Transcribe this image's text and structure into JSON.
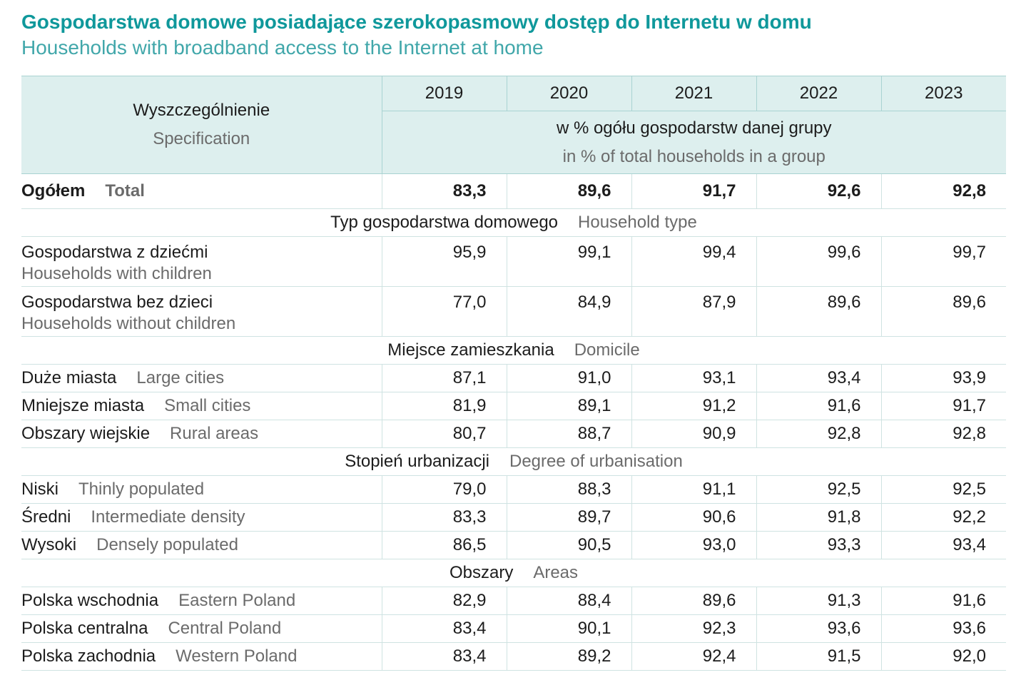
{
  "title": {
    "pl": "Gospodarstwa domowe posiadające szerokopasmowy dostęp do Internetu w domu",
    "en": "Households with broadband access to the Internet at home"
  },
  "colors": {
    "title": "#0f989b",
    "subtitle": "#41a7aa",
    "header_bg": "#ddefee",
    "english_text": "#6b6b6b"
  },
  "table": {
    "header": {
      "spec_pl": "Wyszczególnienie",
      "spec_en": "Specification",
      "years": [
        "2019",
        "2020",
        "2021",
        "2022",
        "2023"
      ],
      "unit_pl": "w % ogółu gospodarstw danej grupy",
      "unit_en": "in % of total households in a group"
    },
    "total": {
      "pl": "Ogółem",
      "en": "Total",
      "values": [
        "83,3",
        "89,6",
        "91,7",
        "92,6",
        "92,8"
      ]
    },
    "sections": [
      {
        "title_pl": "Typ gospodarstwa domowego",
        "title_en": "Household type",
        "rows": [
          {
            "pl": "Gospodarstwa z dziećmi",
            "en": "Households with children",
            "values": [
              "95,9",
              "99,1",
              "99,4",
              "99,6",
              "99,7"
            ]
          },
          {
            "pl": "Gospodarstwa bez dzieci",
            "en": "Households without children",
            "values": [
              "77,0",
              "84,9",
              "87,9",
              "89,6",
              "89,6"
            ]
          }
        ]
      },
      {
        "title_pl": "Miejsce zamieszkania",
        "title_en": "Domicile",
        "rows": [
          {
            "pl": "Duże miasta",
            "en": "Large cities",
            "values": [
              "87,1",
              "91,0",
              "93,1",
              "93,4",
              "93,9"
            ]
          },
          {
            "pl": "Mniejsze miasta",
            "en": "Small cities",
            "values": [
              "81,9",
              "89,1",
              "91,2",
              "91,6",
              "91,7"
            ]
          },
          {
            "pl": "Obszary wiejskie",
            "en": "Rural areas",
            "values": [
              "80,7",
              "88,7",
              "90,9",
              "92,8",
              "92,8"
            ]
          }
        ]
      },
      {
        "title_pl": "Stopień urbanizacji",
        "title_en": "Degree of urbanisation",
        "rows": [
          {
            "pl": "Niski",
            "en": "Thinly populated",
            "values": [
              "79,0",
              "88,3",
              "91,1",
              "92,5",
              "92,5"
            ]
          },
          {
            "pl": "Średni",
            "en": "Intermediate density",
            "values": [
              "83,3",
              "89,7",
              "90,6",
              "91,8",
              "92,2"
            ]
          },
          {
            "pl": "Wysoki",
            "en": "Densely populated",
            "values": [
              "86,5",
              "90,5",
              "93,0",
              "93,3",
              "93,4"
            ]
          }
        ]
      },
      {
        "title_pl": "Obszary",
        "title_en": "Areas",
        "rows": [
          {
            "pl": "Polska wschodnia",
            "en": "Eastern Poland",
            "values": [
              "82,9",
              "88,4",
              "89,6",
              "91,3",
              "91,6"
            ]
          },
          {
            "pl": "Polska centralna",
            "en": "Central Poland",
            "values": [
              "83,4",
              "90,1",
              "92,3",
              "93,6",
              "93,6"
            ]
          },
          {
            "pl": "Polska zachodnia",
            "en": "Western Poland",
            "values": [
              "83,4",
              "89,2",
              "92,4",
              "91,5",
              "92,0"
            ]
          }
        ]
      }
    ]
  }
}
